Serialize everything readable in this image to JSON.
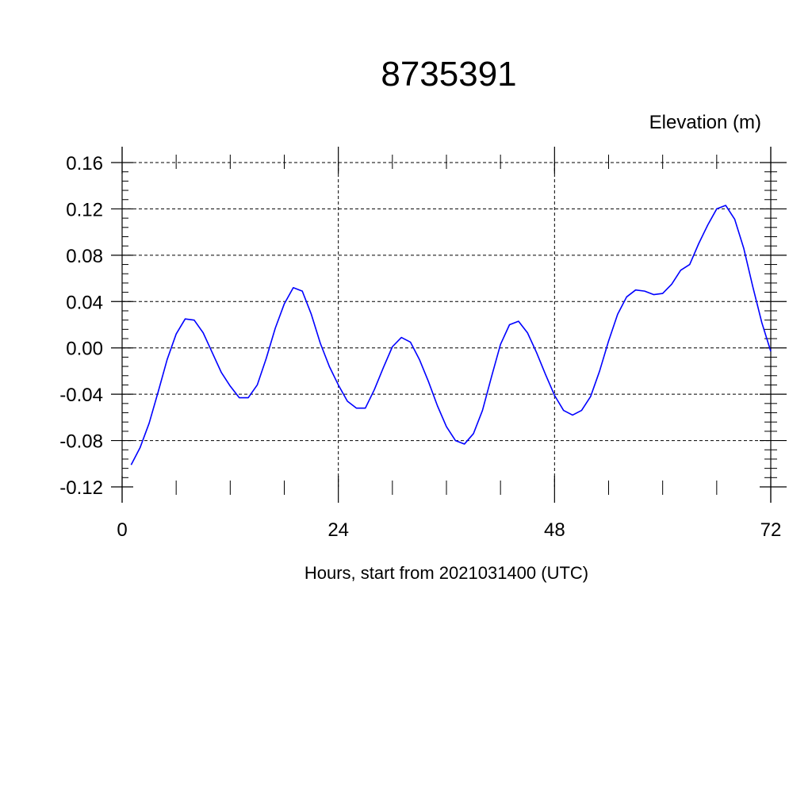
{
  "chart_data": {
    "type": "line",
    "title": "8735391",
    "ylabel": "Elevation (m)",
    "xlabel": "Hours, start from 2021031400 (UTC)",
    "xlim": [
      0,
      72
    ],
    "ylim": [
      -0.12,
      0.16
    ],
    "x_ticks": [
      0,
      24,
      48,
      72
    ],
    "x_tick_labels": [
      "0",
      "24",
      "48",
      "72"
    ],
    "y_ticks": [
      -0.12,
      -0.08,
      -0.04,
      0.0,
      0.04,
      0.08,
      0.12,
      0.16
    ],
    "y_tick_labels": [
      "-0.12",
      "-0.08",
      "-0.04",
      "0.00",
      "0.04",
      "0.08",
      "0.12",
      "0.16"
    ],
    "grid": true,
    "line_color": "#0000ff",
    "series": [
      {
        "x": [
          1,
          2,
          3,
          4,
          5,
          6,
          7,
          8,
          9,
          10,
          11,
          12,
          13,
          14,
          15,
          16,
          17,
          18,
          19,
          20,
          21,
          22,
          23,
          24,
          25,
          26,
          27,
          28,
          29,
          30,
          31,
          32,
          33,
          34,
          35,
          36,
          37,
          38,
          39,
          40,
          41,
          42,
          43,
          44,
          45,
          46,
          47,
          48,
          49,
          50,
          51,
          52,
          53,
          54,
          55,
          56,
          57,
          58,
          59,
          60,
          61,
          62,
          63,
          64,
          65,
          66,
          67,
          68,
          69,
          70,
          71,
          72
        ],
        "values": [
          -0.101,
          -0.086,
          -0.065,
          -0.038,
          -0.01,
          0.012,
          0.025,
          0.024,
          0.013,
          -0.004,
          -0.021,
          -0.033,
          -0.043,
          -0.043,
          -0.032,
          -0.009,
          0.017,
          0.038,
          0.052,
          0.049,
          0.029,
          0.004,
          -0.016,
          -0.032,
          -0.046,
          -0.052,
          -0.052,
          -0.036,
          -0.017,
          0.001,
          0.009,
          0.005,
          -0.01,
          -0.029,
          -0.05,
          -0.068,
          -0.08,
          -0.083,
          -0.074,
          -0.054,
          -0.025,
          0.003,
          0.02,
          0.023,
          0.013,
          -0.004,
          -0.023,
          -0.041,
          -0.054,
          -0.058,
          -0.054,
          -0.042,
          -0.02,
          0.006,
          0.029,
          0.044,
          0.05,
          0.049,
          0.046,
          0.047,
          0.055,
          0.067,
          0.072,
          0.09,
          0.106,
          0.12,
          0.123,
          0.111,
          0.086,
          0.053,
          0.022,
          -0.003
        ]
      }
    ]
  }
}
